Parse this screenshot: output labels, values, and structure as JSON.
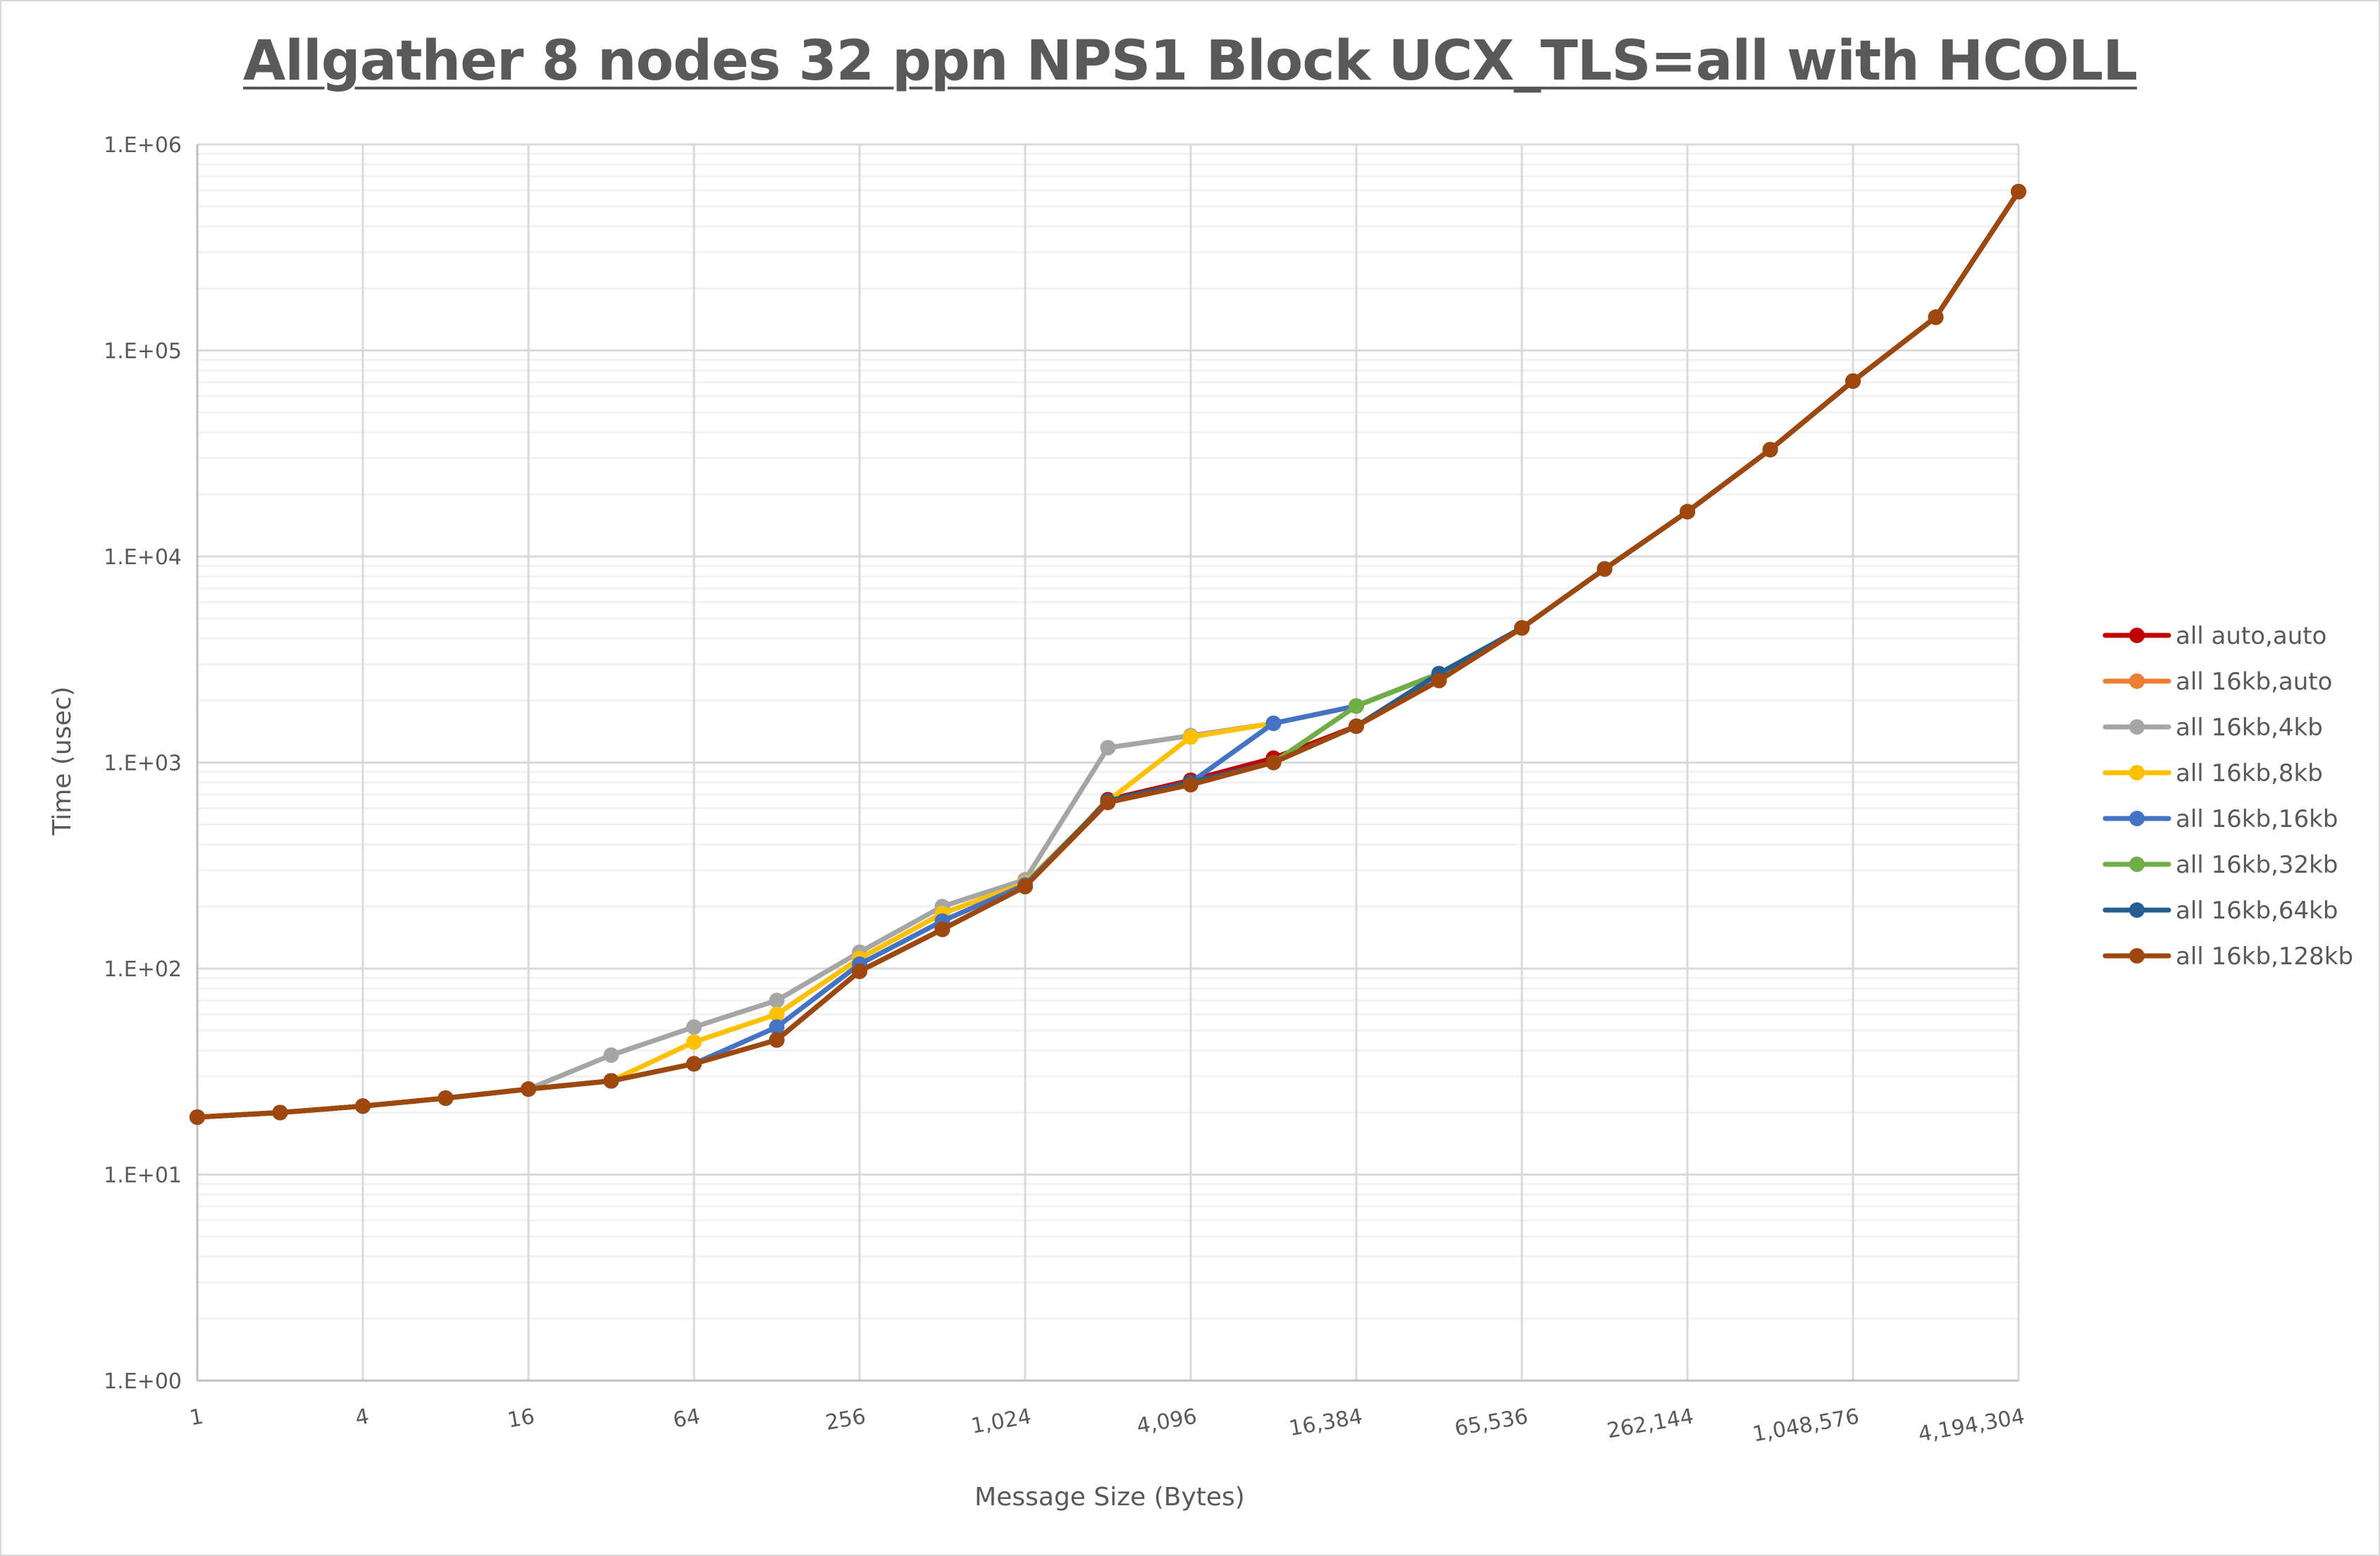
{
  "chart_data": {
    "type": "line",
    "title": "Allgather 8 nodes 32 ppn NPS1 Block UCX_TLS=all with HCOLL",
    "xlabel": "Message Size (Bytes)",
    "ylabel": "Time (usec)",
    "x_scale": "log2",
    "y_scale": "log10",
    "ylim": [
      1,
      1000000
    ],
    "grid": true,
    "legend": "right",
    "x": [
      1,
      2,
      4,
      8,
      16,
      32,
      64,
      128,
      256,
      512,
      1024,
      2048,
      4096,
      8192,
      16384,
      32768,
      65536,
      131072,
      262144,
      524288,
      1048576,
      2097152,
      4194304
    ],
    "x_tick_labels": [
      "1",
      "4",
      "16",
      "64",
      "256",
      "1,024",
      "4,096",
      "16,384",
      "65,536",
      "262,144",
      "1,048,576",
      "4,194,304"
    ],
    "y_tick_labels": [
      "1.E+00",
      "1.E+01",
      "1.E+02",
      "1.E+03",
      "1.E+04",
      "1.E+05",
      "1.E+06"
    ],
    "series": [
      {
        "name": "all auto,auto",
        "color": "#c00000",
        "values": [
          19,
          20,
          21.5,
          23.5,
          26,
          28.5,
          34.5,
          45,
          97,
          155,
          250,
          660,
          820,
          1050,
          1500,
          2500,
          4500,
          8700,
          16500,
          33000,
          71000,
          145000,
          590000
        ]
      },
      {
        "name": "all 16kb,auto",
        "color": "#ed7d31",
        "values": [
          19,
          20,
          21.5,
          23.5,
          26,
          28.5,
          34.5,
          45,
          97,
          155,
          250,
          650,
          800,
          1000,
          1500,
          2500,
          4500,
          8700,
          16500,
          33000,
          71000,
          145000,
          590000
        ]
      },
      {
        "name": "all 16kb,4kb",
        "color": "#a5a5a5",
        "values": [
          19,
          20,
          21.5,
          23.5,
          26,
          38,
          52,
          70,
          120,
          200,
          270,
          1180,
          1350,
          1550,
          1880,
          2700,
          4500,
          8700,
          16500,
          33000,
          71000,
          145000,
          590000
        ]
      },
      {
        "name": "all 16kb,8kb",
        "color": "#ffc000",
        "values": [
          19,
          20,
          21.5,
          23.5,
          26,
          28.5,
          44,
          60,
          112,
          185,
          260,
          650,
          1330,
          1550,
          1880,
          2700,
          4500,
          8700,
          16500,
          33000,
          71000,
          145000,
          590000
        ]
      },
      {
        "name": "all 16kb,16kb",
        "color": "#4472c4",
        "values": [
          19,
          20,
          21.5,
          23.5,
          26,
          28.5,
          34.5,
          52,
          105,
          170,
          255,
          650,
          800,
          1550,
          1880,
          2700,
          4500,
          8700,
          16500,
          33000,
          71000,
          145000,
          590000
        ]
      },
      {
        "name": "all 16kb,32kb",
        "color": "#70ad47",
        "values": [
          19,
          20,
          21.5,
          23.5,
          26,
          28.5,
          34.5,
          45,
          97,
          155,
          250,
          650,
          800,
          1000,
          1880,
          2700,
          4500,
          8700,
          16500,
          33000,
          71000,
          145000,
          590000
        ]
      },
      {
        "name": "all 16kb,64kb",
        "color": "#255e91",
        "values": [
          19,
          20,
          21.5,
          23.5,
          26,
          28.5,
          34.5,
          45,
          97,
          155,
          250,
          650,
          800,
          1000,
          1500,
          2700,
          4500,
          8700,
          16500,
          33000,
          71000,
          145000,
          590000
        ]
      },
      {
        "name": "all 16kb,128kb",
        "color": "#9e480e",
        "values": [
          19,
          20,
          21.5,
          23.5,
          26,
          28.5,
          34.5,
          45,
          97,
          155,
          250,
          640,
          780,
          1000,
          1500,
          2500,
          4500,
          8700,
          16500,
          33000,
          71000,
          145000,
          590000
        ]
      }
    ]
  }
}
